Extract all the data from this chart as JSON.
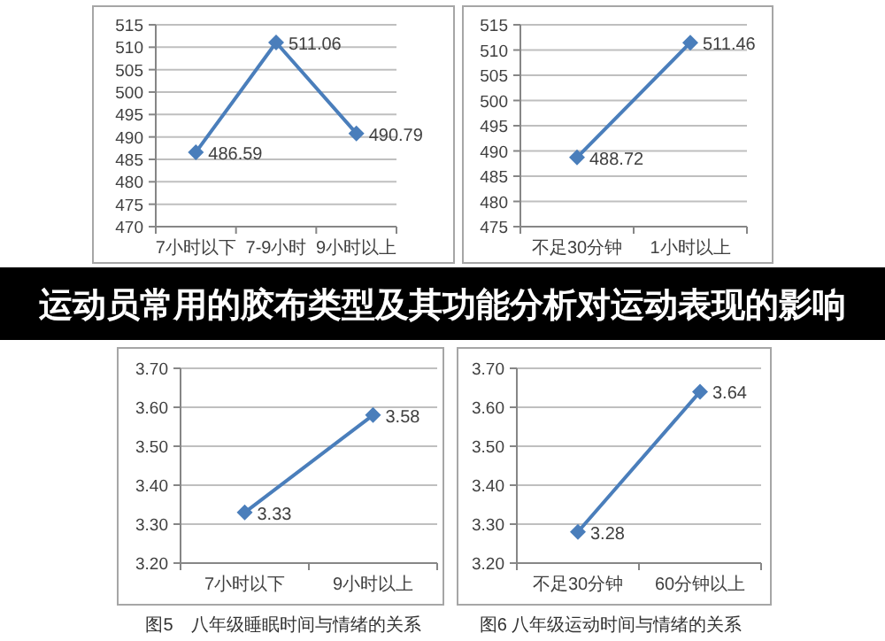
{
  "chart_data": [
    {
      "type": "line",
      "categories": [
        "7小时以下",
        "7-9小时",
        "9小时以上"
      ],
      "series": [
        {
          "color": "#4a7ebb",
          "values": [
            486.59,
            511.06,
            490.79
          ]
        }
      ],
      "ylim": [
        470,
        515
      ],
      "yticks": [
        470,
        475,
        480,
        485,
        490,
        495,
        500,
        505,
        510,
        515
      ],
      "grid": "y",
      "marker": "diamond",
      "data_labels": true
    },
    {
      "type": "line",
      "categories": [
        "不足30分钟",
        "1小时以上"
      ],
      "series": [
        {
          "color": "#4a7ebb",
          "values": [
            488.72,
            511.46
          ]
        }
      ],
      "ylim": [
        475,
        515
      ],
      "yticks": [
        475,
        480,
        485,
        490,
        495,
        500,
        505,
        510,
        515
      ],
      "grid": "y",
      "marker": "diamond",
      "data_labels": true
    },
    {
      "type": "other",
      "title": "运动员常用的胶布类型及其功能分析对运动表现的影响"
    },
    {
      "type": "line",
      "categories": [
        "7小时以下",
        "9小时以上"
      ],
      "series": [
        {
          "color": "#4a7ebb",
          "values": [
            3.33,
            3.58
          ]
        }
      ],
      "ylim": [
        3.2,
        3.7
      ],
      "yticks": [
        {
          "value": 3.2,
          "label": "3.20"
        },
        {
          "value": 3.3,
          "label": "3.30"
        },
        {
          "value": 3.4,
          "label": "3.40"
        },
        {
          "value": 3.5,
          "label": "3.50"
        },
        {
          "value": 3.6,
          "label": "3.60"
        },
        {
          "value": 3.7,
          "label": "3.70"
        }
      ],
      "grid": "y",
      "marker": "diamond",
      "data_labels": true,
      "annotations": [
        "图5　八年级睡眠时间与情绪的关系"
      ]
    },
    {
      "type": "line",
      "categories": [
        "不足30分钟",
        "60分钟以上"
      ],
      "series": [
        {
          "color": "#4a7ebb",
          "values": [
            3.28,
            3.64
          ]
        }
      ],
      "ylim": [
        3.2,
        3.7
      ],
      "yticks": [
        {
          "value": 3.2,
          "label": "3.20"
        },
        {
          "value": 3.3,
          "label": "3.30"
        },
        {
          "value": 3.4,
          "label": "3.40"
        },
        {
          "value": 3.5,
          "label": "3.50"
        },
        {
          "value": 3.6,
          "label": "3.60"
        },
        {
          "value": 3.7,
          "label": "3.70"
        }
      ],
      "grid": "y",
      "marker": "diamond",
      "data_labels": true,
      "annotations": [
        "图6 八年级运动时间与情绪的关系"
      ]
    }
  ]
}
